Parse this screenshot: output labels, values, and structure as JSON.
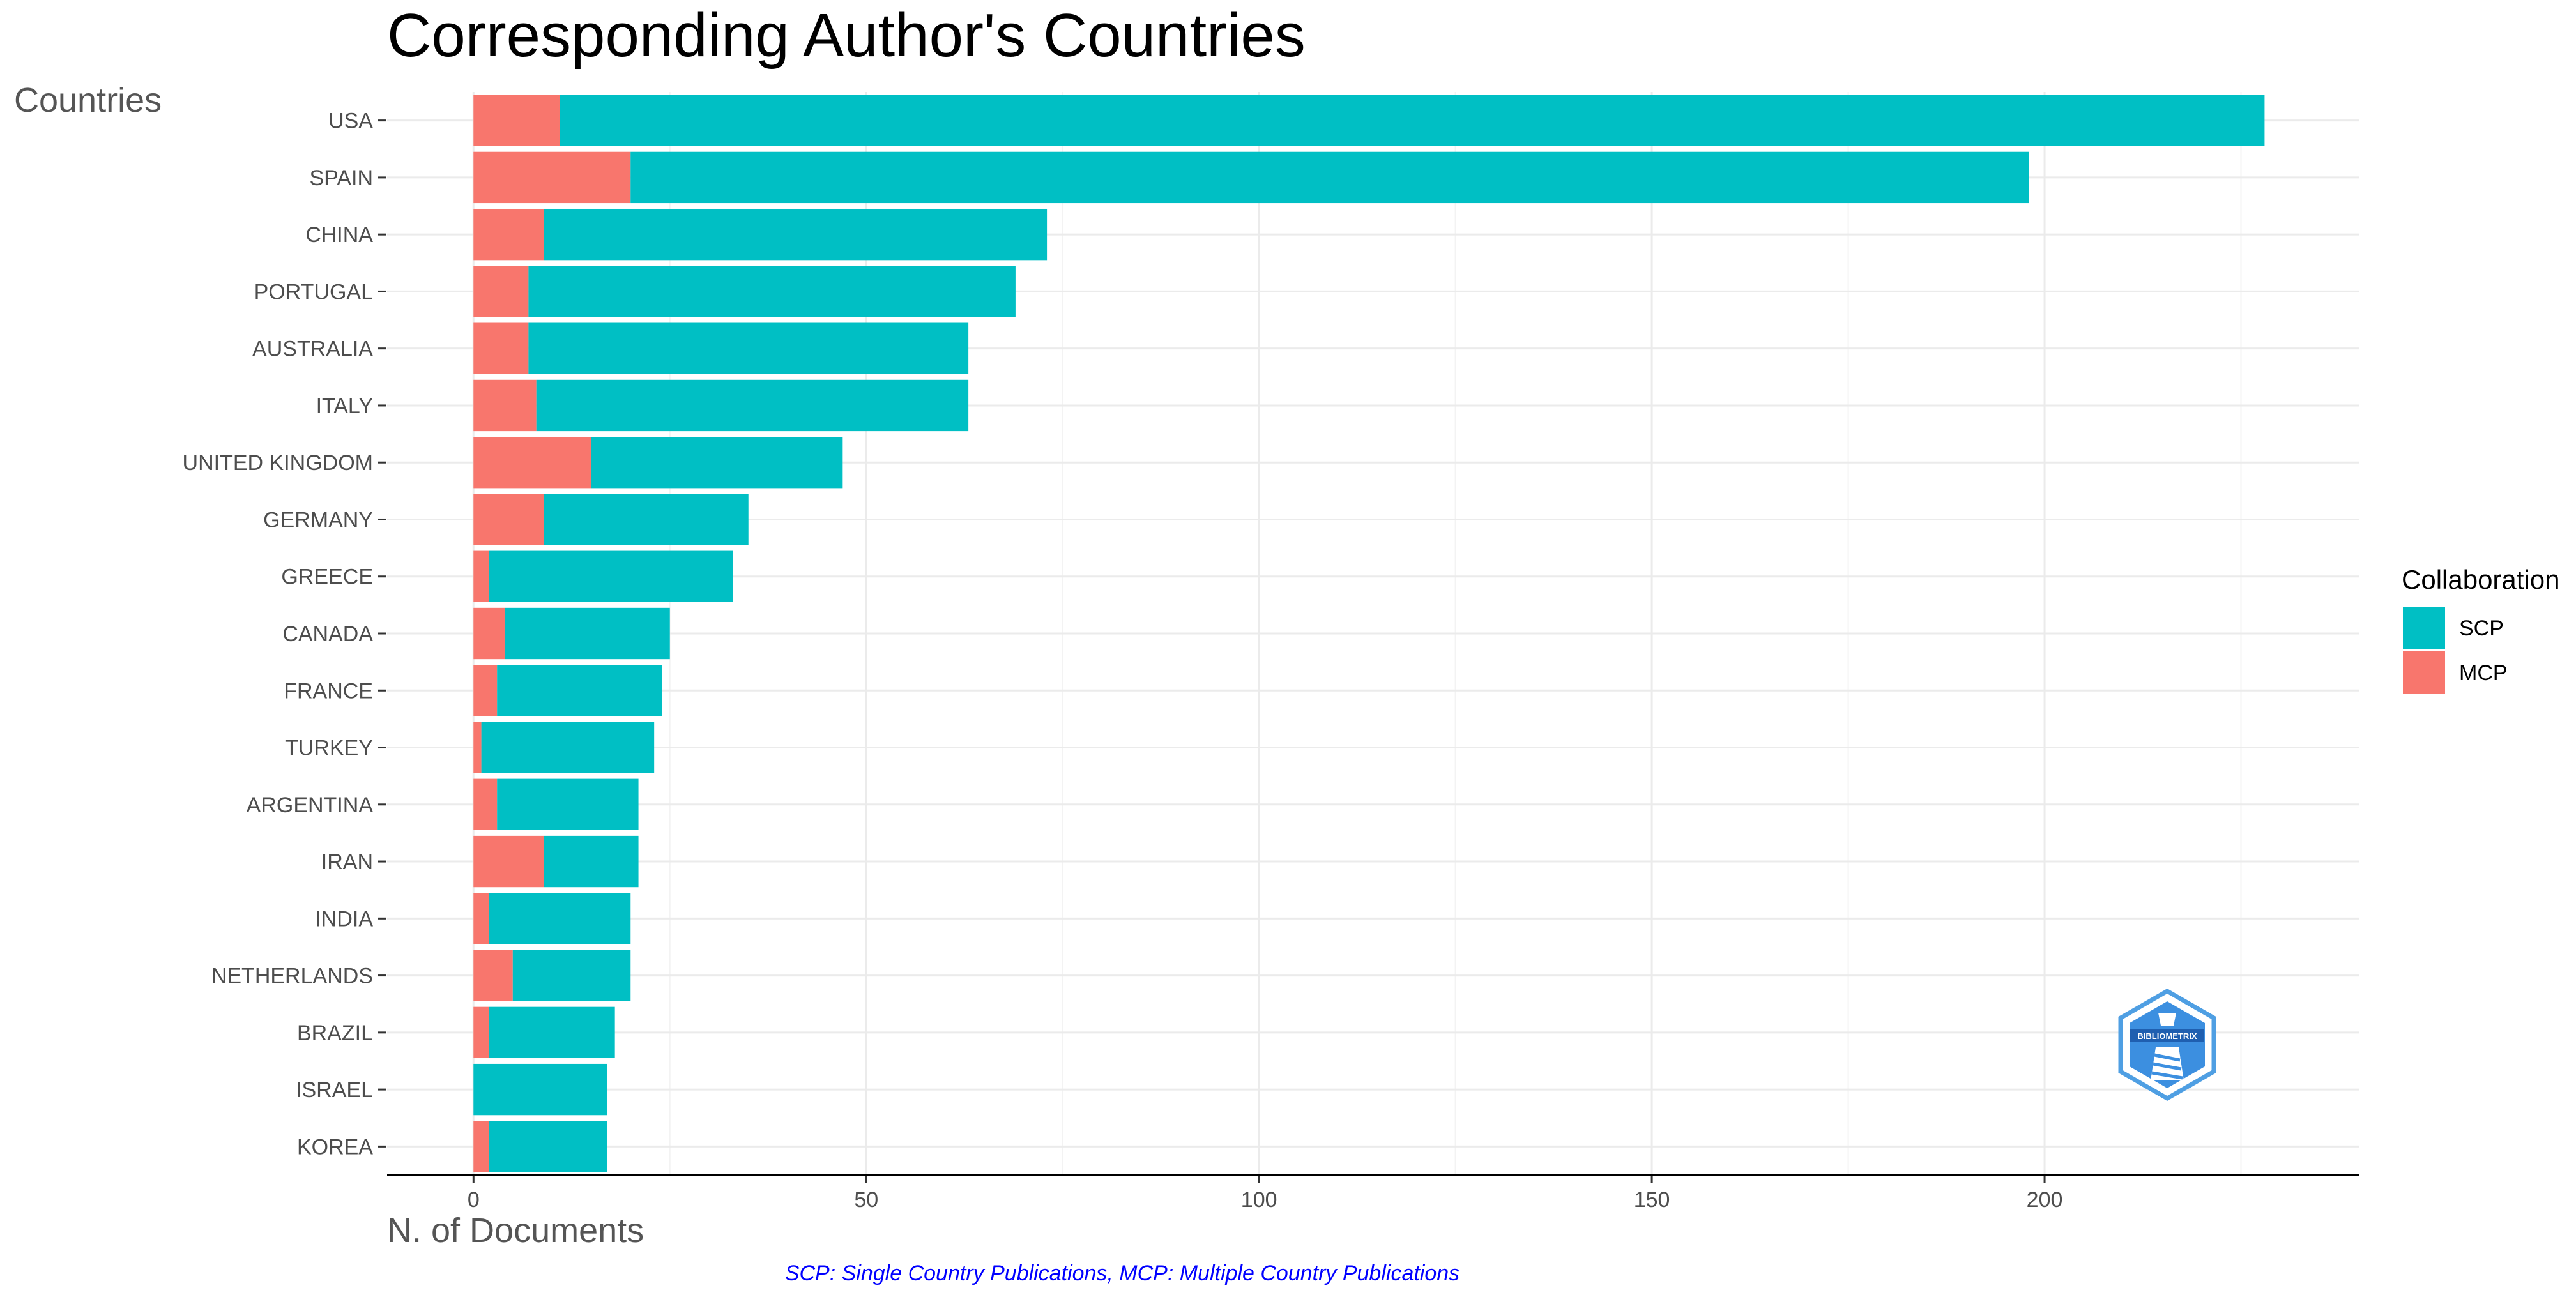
{
  "chart_data": {
    "type": "bar",
    "orientation": "horizontal",
    "stacked": true,
    "title": "Corresponding Author's Countries",
    "ylabel": "Countries",
    "xlabel": "N. of Documents",
    "categories": [
      "USA",
      "SPAIN",
      "CHINA",
      "PORTUGAL",
      "AUSTRALIA",
      "ITALY",
      "UNITED KINGDOM",
      "GERMANY",
      "GREECE",
      "CANADA",
      "FRANCE",
      "TURKEY",
      "ARGENTINA",
      "IRAN",
      "INDIA",
      "NETHERLANDS",
      "BRAZIL",
      "ISRAEL",
      "KOREA"
    ],
    "series": [
      {
        "name": "MCP",
        "color": "#F8766D",
        "values": [
          11,
          20,
          9,
          7,
          7,
          8,
          15,
          9,
          2,
          4,
          3,
          1,
          3,
          9,
          2,
          5,
          2,
          0,
          2
        ]
      },
      {
        "name": "SCP",
        "color": "#00BFC4",
        "values": [
          217,
          178,
          64,
          62,
          56,
          55,
          32,
          26,
          31,
          21,
          21,
          22,
          18,
          12,
          18,
          15,
          16,
          17,
          15
        ]
      }
    ],
    "xlim": [
      -11,
      240
    ],
    "xticks": [
      0,
      50,
      100,
      150,
      200
    ],
    "grid": true,
    "legend": {
      "title": "Collaboration",
      "placement": "right",
      "entries": [
        "SCP",
        "MCP"
      ]
    },
    "caption": "SCP: Single Country Publications, MCP: Multiple Country Publications",
    "logo_text": "BIBLIOMETRIX"
  }
}
